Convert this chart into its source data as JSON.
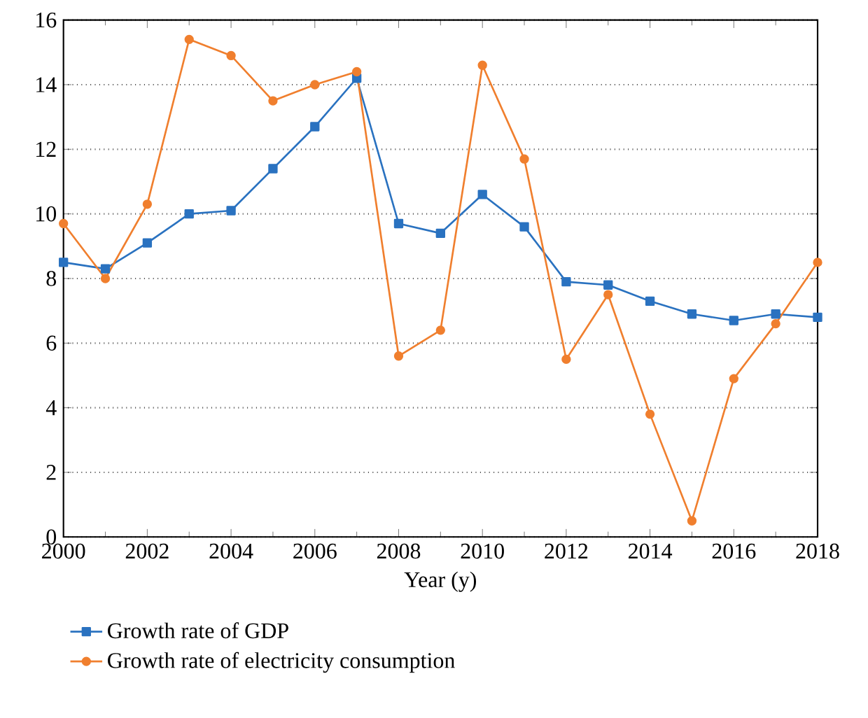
{
  "chart_data": {
    "type": "line",
    "xlabel": "Year (y)",
    "x": [
      2000,
      2001,
      2002,
      2003,
      2004,
      2005,
      2006,
      2007,
      2008,
      2009,
      2010,
      2011,
      2012,
      2013,
      2014,
      2015,
      2016,
      2017,
      2018
    ],
    "series": [
      {
        "name": "Growth rate of GDP",
        "color": "#2a72c0",
        "marker": "square",
        "values": [
          8.5,
          8.3,
          9.1,
          10.0,
          10.1,
          11.4,
          12.7,
          14.2,
          9.7,
          9.4,
          10.6,
          9.6,
          7.9,
          7.8,
          7.3,
          6.9,
          6.7,
          6.9,
          6.8
        ]
      },
      {
        "name": "Growth rate of electricity consumption",
        "color": "#f07f2e",
        "marker": "circle",
        "values": [
          9.7,
          8.0,
          10.3,
          15.4,
          14.9,
          13.5,
          14.0,
          14.4,
          5.6,
          6.4,
          14.6,
          11.7,
          5.5,
          7.5,
          3.8,
          0.5,
          4.9,
          6.6,
          8.5
        ]
      }
    ],
    "xlim": [
      2000,
      2018
    ],
    "ylim": [
      0,
      16
    ],
    "xticks": [
      2000,
      2002,
      2004,
      2006,
      2008,
      2010,
      2012,
      2014,
      2016,
      2018
    ],
    "yticks": [
      0,
      2,
      4,
      6,
      8,
      10,
      12,
      14,
      16
    ],
    "grid": "y",
    "legend": "bottom",
    "line_style": "solid"
  }
}
